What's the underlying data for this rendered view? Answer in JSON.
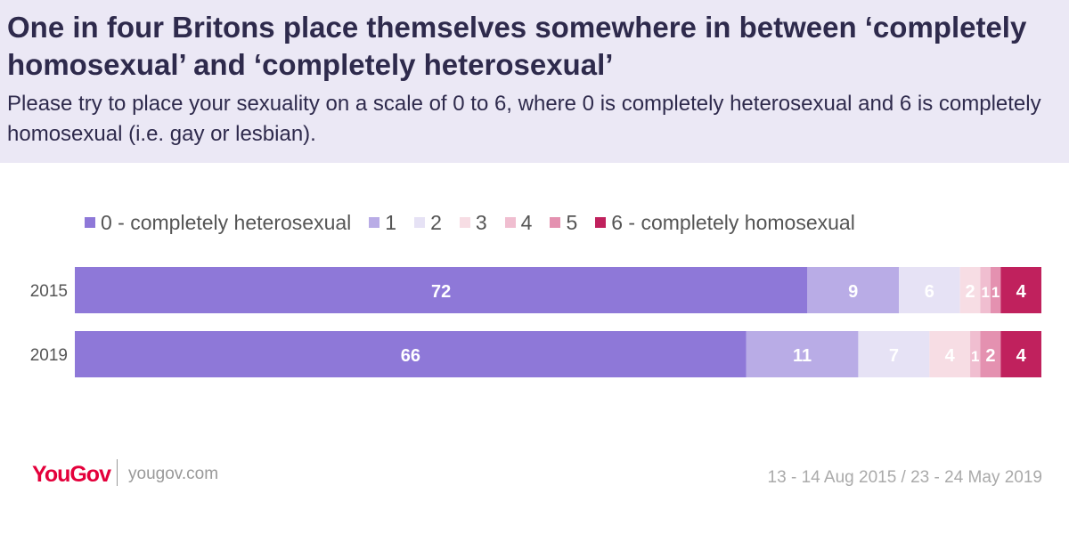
{
  "header": {
    "title": "One in four Britons place themselves somewhere in between ‘completely homosexual’ and ‘completely heterosexual’",
    "subtitle": "Please try to place your sexuality on a scale of 0 to 6, where 0 is completely heterosexual and 6 is completely homosexual (i.e. gay or lesbian)."
  },
  "legend": [
    {
      "label": "0 - completely heterosexual",
      "color": "#8e78d8"
    },
    {
      "label": "1",
      "color": "#b9ace6"
    },
    {
      "label": "2",
      "color": "#e6e2f5"
    },
    {
      "label": "3",
      "color": "#f7dde4"
    },
    {
      "label": "4",
      "color": "#f0bed0"
    },
    {
      "label": "5",
      "color": "#e491b0"
    },
    {
      "label": "6 - completely homosexual",
      "color": "#c0215d"
    }
  ],
  "chart_data": {
    "type": "bar",
    "orientation": "horizontal-stacked",
    "categories": [
      "2015",
      "2019"
    ],
    "series": [
      {
        "name": "0 - completely heterosexual",
        "values": [
          72,
          66
        ]
      },
      {
        "name": "1",
        "values": [
          9,
          11
        ]
      },
      {
        "name": "2",
        "values": [
          6,
          7
        ]
      },
      {
        "name": "3",
        "values": [
          2,
          4
        ]
      },
      {
        "name": "4",
        "values": [
          1,
          1
        ]
      },
      {
        "name": "5",
        "values": [
          1,
          2
        ]
      },
      {
        "name": "6 - completely homosexual",
        "values": [
          4,
          4
        ]
      }
    ],
    "label_colors": [
      "#ffffff",
      "#ffffff",
      "#ffffff",
      "#ffffff",
      "#ffffff",
      "#ffffff",
      "#ffffff"
    ],
    "legend_position": "top"
  },
  "footer": {
    "brand": "YouGov",
    "site": "yougov.com",
    "dates": "13 - 14 Aug 2015 / 23 - 24 May 2019"
  }
}
